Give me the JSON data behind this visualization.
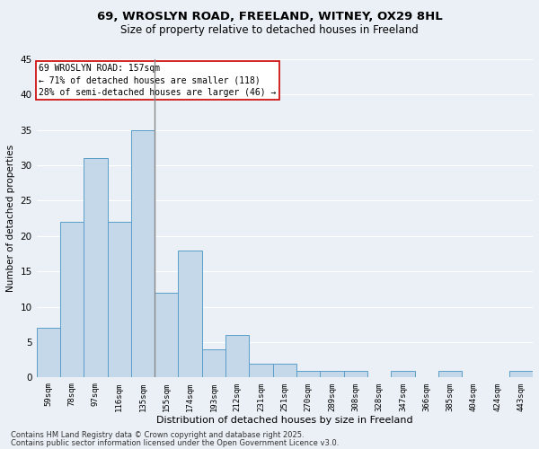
{
  "title1": "69, WROSLYN ROAD, FREELAND, WITNEY, OX29 8HL",
  "title2": "Size of property relative to detached houses in Freeland",
  "xlabel": "Distribution of detached houses by size in Freeland",
  "ylabel": "Number of detached properties",
  "footer1": "Contains HM Land Registry data © Crown copyright and database right 2025.",
  "footer2": "Contains public sector information licensed under the Open Government Licence v3.0.",
  "annotation_line1": "69 WROSLYN ROAD: 157sqm",
  "annotation_line2": "← 71% of detached houses are smaller (118)",
  "annotation_line3": "28% of semi-detached houses are larger (46) →",
  "bar_labels": [
    "59sqm",
    "78sqm",
    "97sqm",
    "116sqm",
    "135sqm",
    "155sqm",
    "174sqm",
    "193sqm",
    "212sqm",
    "231sqm",
    "251sqm",
    "270sqm",
    "289sqm",
    "308sqm",
    "328sqm",
    "347sqm",
    "366sqm",
    "385sqm",
    "404sqm",
    "424sqm",
    "443sqm"
  ],
  "bar_values": [
    7,
    22,
    31,
    22,
    35,
    12,
    18,
    4,
    6,
    2,
    2,
    1,
    1,
    1,
    0,
    1,
    0,
    1,
    0,
    0,
    1
  ],
  "bar_color": "#c5d8ea",
  "bar_edge_color": "#5a9ec9",
  "property_line_x": 4.5,
  "property_line_color": "#888888",
  "bg_color": "#eaf0f6",
  "plot_bg_color": "#eaf0f6",
  "grid_color": "#ffffff",
  "annotation_box_color": "#ffffff",
  "annotation_border_color": "#cc0000",
  "ylim": [
    0,
    45
  ],
  "yticks": [
    0,
    5,
    10,
    15,
    20,
    25,
    30,
    35,
    40,
    45
  ],
  "title1_fontsize": 9.5,
  "title2_fontsize": 8.5,
  "xlabel_fontsize": 8,
  "ylabel_fontsize": 7.5,
  "xtick_fontsize": 6.5,
  "ytick_fontsize": 7.5,
  "annotation_fontsize": 7,
  "footer_fontsize": 6
}
